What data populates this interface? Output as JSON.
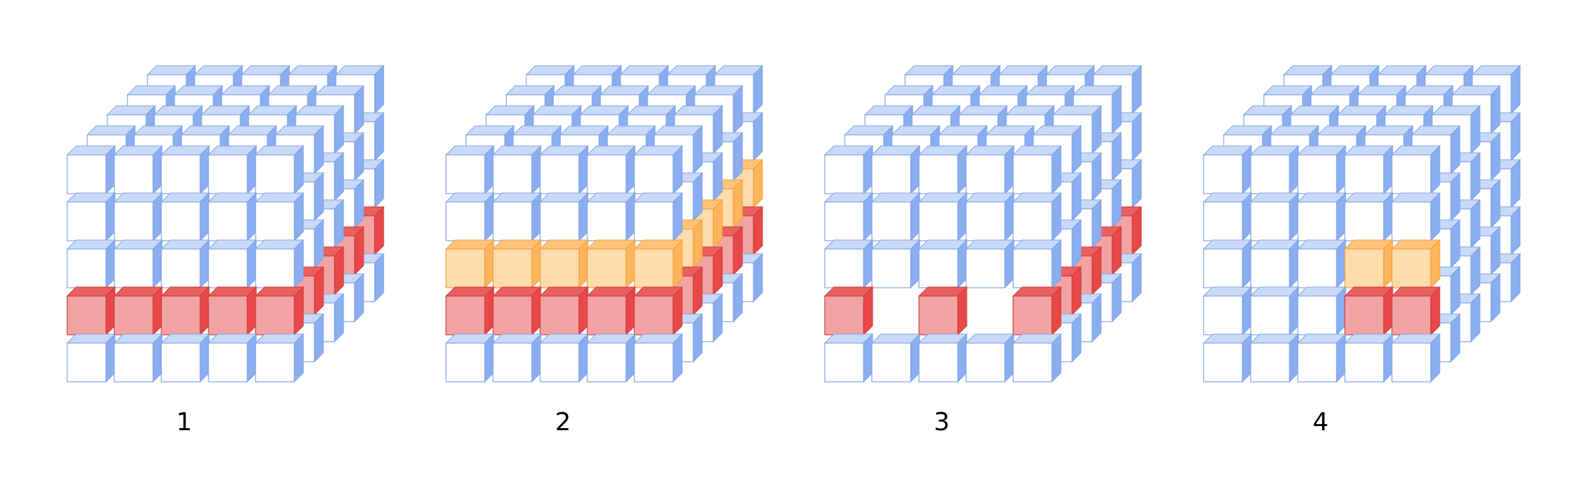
{
  "colors": {
    "empty_front": "#ffffff",
    "empty_top": "#c8daf8",
    "empty_side": "#8aaeef",
    "empty_stroke": "#7fa3e6",
    "red_front": "#f2a3a3",
    "red_top": "#ea6060",
    "red_side": "#e84848",
    "red_stroke": "#d03a3a",
    "orange_front": "#ffdcac",
    "orange_top": "#ffc47a",
    "orange_side": "#ffb55a",
    "orange_stroke": "#f0a040",
    "label": "#000000"
  },
  "grid": {
    "columns": 5,
    "rows": 5,
    "depth": 5
  },
  "panels": [
    {
      "label": "1",
      "front_red": [
        [
          3,
          0
        ],
        [
          3,
          1
        ],
        [
          3,
          2
        ],
        [
          3,
          3
        ],
        [
          3,
          4
        ]
      ],
      "front_orange": [],
      "front_hidden": [],
      "depth_red_row": 3,
      "depth_orange_row": null
    },
    {
      "label": "2",
      "front_red": [
        [
          3,
          0
        ],
        [
          3,
          1
        ],
        [
          3,
          2
        ],
        [
          3,
          3
        ],
        [
          3,
          4
        ]
      ],
      "front_orange": [
        [
          2,
          0
        ],
        [
          2,
          1
        ],
        [
          2,
          2
        ],
        [
          2,
          3
        ],
        [
          2,
          4
        ]
      ],
      "front_hidden": [],
      "depth_red_row": 3,
      "depth_orange_row": 2
    },
    {
      "label": "3",
      "front_red": [
        [
          3,
          0
        ],
        [
          3,
          2
        ],
        [
          3,
          4
        ]
      ],
      "front_orange": [],
      "front_hidden": [
        [
          3,
          1
        ],
        [
          3,
          3
        ]
      ],
      "depth_red_row": 3,
      "depth_orange_row": null
    },
    {
      "label": "4",
      "front_red": [
        [
          3,
          3
        ],
        [
          3,
          4
        ]
      ],
      "front_orange": [
        [
          2,
          3
        ],
        [
          2,
          4
        ]
      ],
      "front_hidden": [],
      "depth_red_row": null,
      "depth_orange_row": null
    }
  ]
}
